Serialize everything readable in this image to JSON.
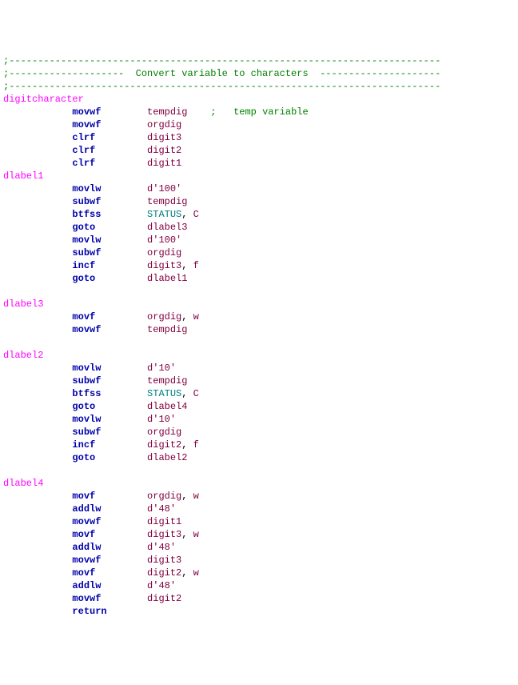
{
  "colors": {
    "comment": "#008000",
    "label": "#ff00ff",
    "mnemonic": "#0000aa",
    "operand": "#800040",
    "status": "#008080",
    "flag": "#800040",
    "text": "#000000"
  },
  "layout": {
    "indent1_spaces": 12,
    "col2_spaces_after_mnemonic": 13
  },
  "lines": [
    {
      "type": "comment",
      "text": ";---------------------------------------------------------------------------"
    },
    {
      "type": "comment",
      "text": ";--------------------  Convert variable to characters  ---------------------"
    },
    {
      "type": "comment",
      "text": ";---------------------------------------------------------------------------"
    },
    {
      "type": "label",
      "text": "digitcharacter"
    },
    {
      "type": "instr",
      "mnemonic": "movwf",
      "operands": [
        {
          "t": "op",
          "v": "tempdig"
        }
      ],
      "trail": "    ;   temp variable"
    },
    {
      "type": "instr",
      "mnemonic": "movwf",
      "operands": [
        {
          "t": "op",
          "v": "orgdig"
        }
      ]
    },
    {
      "type": "instr",
      "mnemonic": "clrf",
      "operands": [
        {
          "t": "op",
          "v": "digit3"
        }
      ]
    },
    {
      "type": "instr",
      "mnemonic": "clrf",
      "operands": [
        {
          "t": "op",
          "v": "digit2"
        }
      ]
    },
    {
      "type": "instr",
      "mnemonic": "clrf",
      "operands": [
        {
          "t": "op",
          "v": "digit1"
        }
      ]
    },
    {
      "type": "label",
      "text": "dlabel1"
    },
    {
      "type": "instr",
      "mnemonic": "movlw",
      "operands": [
        {
          "t": "op",
          "v": "d'100'"
        }
      ]
    },
    {
      "type": "instr",
      "mnemonic": "subwf",
      "operands": [
        {
          "t": "op",
          "v": "tempdig"
        }
      ]
    },
    {
      "type": "instr",
      "mnemonic": "btfss",
      "operands": [
        {
          "t": "status",
          "v": "STATUS"
        },
        {
          "t": "op",
          "v": "C"
        }
      ]
    },
    {
      "type": "instr",
      "mnemonic": "goto",
      "operands": [
        {
          "t": "op",
          "v": "dlabel3"
        }
      ]
    },
    {
      "type": "instr",
      "mnemonic": "movlw",
      "operands": [
        {
          "t": "op",
          "v": "d'100'"
        }
      ]
    },
    {
      "type": "instr",
      "mnemonic": "subwf",
      "operands": [
        {
          "t": "op",
          "v": "orgdig"
        }
      ]
    },
    {
      "type": "instr",
      "mnemonic": "incf",
      "operands": [
        {
          "t": "op",
          "v": "digit3"
        },
        {
          "t": "op",
          "v": "f"
        }
      ]
    },
    {
      "type": "instr",
      "mnemonic": "goto",
      "operands": [
        {
          "t": "op",
          "v": "dlabel1"
        }
      ]
    },
    {
      "type": "blank"
    },
    {
      "type": "label",
      "text": "dlabel3"
    },
    {
      "type": "instr",
      "mnemonic": "movf",
      "operands": [
        {
          "t": "op",
          "v": "orgdig"
        },
        {
          "t": "op",
          "v": "w"
        }
      ]
    },
    {
      "type": "instr",
      "mnemonic": "movwf",
      "operands": [
        {
          "t": "op",
          "v": "tempdig"
        }
      ]
    },
    {
      "type": "blank"
    },
    {
      "type": "label",
      "text": "dlabel2"
    },
    {
      "type": "instr",
      "mnemonic": "movlw",
      "operands": [
        {
          "t": "op",
          "v": "d'10'"
        }
      ]
    },
    {
      "type": "instr",
      "mnemonic": "subwf",
      "operands": [
        {
          "t": "op",
          "v": "tempdig"
        }
      ]
    },
    {
      "type": "instr",
      "mnemonic": "btfss",
      "operands": [
        {
          "t": "status",
          "v": "STATUS"
        },
        {
          "t": "op",
          "v": "C"
        }
      ]
    },
    {
      "type": "instr",
      "mnemonic": "goto",
      "operands": [
        {
          "t": "op",
          "v": "dlabel4"
        }
      ]
    },
    {
      "type": "instr",
      "mnemonic": "movlw",
      "operands": [
        {
          "t": "op",
          "v": "d'10'"
        }
      ]
    },
    {
      "type": "instr",
      "mnemonic": "subwf",
      "operands": [
        {
          "t": "op",
          "v": "orgdig"
        }
      ]
    },
    {
      "type": "instr",
      "mnemonic": "incf",
      "operands": [
        {
          "t": "op",
          "v": "digit2"
        },
        {
          "t": "op",
          "v": "f"
        }
      ]
    },
    {
      "type": "instr",
      "mnemonic": "goto",
      "operands": [
        {
          "t": "op",
          "v": "dlabel2"
        }
      ]
    },
    {
      "type": "blank"
    },
    {
      "type": "label",
      "text": "dlabel4"
    },
    {
      "type": "instr",
      "mnemonic": "movf",
      "operands": [
        {
          "t": "op",
          "v": "orgdig"
        },
        {
          "t": "op",
          "v": "w"
        }
      ]
    },
    {
      "type": "instr",
      "mnemonic": "addlw",
      "operands": [
        {
          "t": "op",
          "v": "d'48'"
        }
      ]
    },
    {
      "type": "instr",
      "mnemonic": "movwf",
      "operands": [
        {
          "t": "op",
          "v": "digit1"
        }
      ]
    },
    {
      "type": "instr",
      "mnemonic": "movf",
      "operands": [
        {
          "t": "op",
          "v": "digit3"
        },
        {
          "t": "op",
          "v": "w"
        }
      ]
    },
    {
      "type": "instr",
      "mnemonic": "addlw",
      "operands": [
        {
          "t": "op",
          "v": "d'48'"
        }
      ]
    },
    {
      "type": "instr",
      "mnemonic": "movwf",
      "operands": [
        {
          "t": "op",
          "v": "digit3"
        }
      ]
    },
    {
      "type": "instr",
      "mnemonic": "movf",
      "operands": [
        {
          "t": "op",
          "v": "digit2"
        },
        {
          "t": "op",
          "v": "w"
        }
      ]
    },
    {
      "type": "instr",
      "mnemonic": "addlw",
      "operands": [
        {
          "t": "op",
          "v": "d'48'"
        }
      ]
    },
    {
      "type": "instr",
      "mnemonic": "movwf",
      "operands": [
        {
          "t": "op",
          "v": "digit2"
        }
      ]
    },
    {
      "type": "instr",
      "mnemonic": "return",
      "operands": []
    }
  ]
}
